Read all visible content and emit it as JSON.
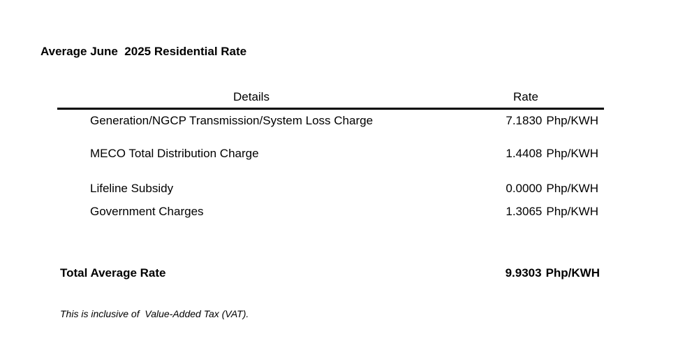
{
  "document": {
    "title": "Average June  2025 Residential Rate",
    "columns": {
      "details": "Details",
      "rate": "Rate"
    },
    "rows": [
      {
        "label": "Generation/NGCP Transmission/System Loss Charge",
        "value": "7.1830",
        "unit": "Php/KWH"
      },
      {
        "label": "MECO Total Distribution Charge",
        "value": "1.4408",
        "unit": "Php/KWH"
      },
      {
        "label": "Lifeline Subsidy",
        "value": "0.0000",
        "unit": "Php/KWH"
      },
      {
        "label": "Government Charges",
        "value": "1.3065",
        "unit": "Php/KWH"
      }
    ],
    "total": {
      "label": "Total Average Rate",
      "value": "9.9303",
      "unit": "Php/KWH"
    },
    "note": "This is inclusive of  Value-Added Tax (VAT)."
  }
}
